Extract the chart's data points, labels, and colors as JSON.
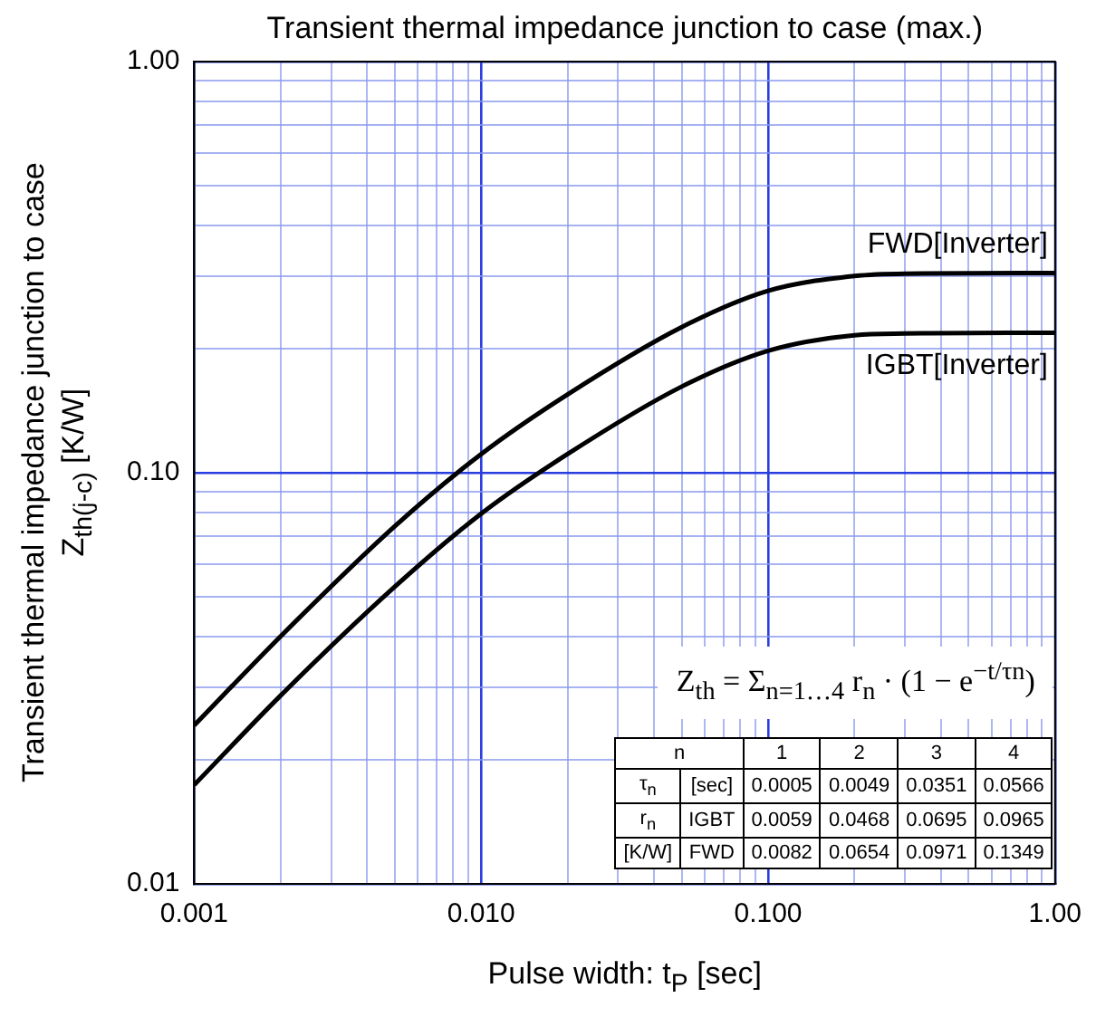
{
  "chart_data": {
    "type": "line",
    "title": "Transient thermal impedance junction to case (max.)",
    "xlabel": "Pulse width: t$_{P}$ [sec]",
    "ylabel": "Transient thermal impedance junction to case\nZ$_{th(j-c)}$  [K/W]",
    "log": "xy",
    "grid": true,
    "marker": "none",
    "line_style": "solid",
    "x": [
      0.001,
      0.002,
      0.005,
      0.01,
      0.02,
      0.05,
      0.1,
      0.2,
      0.3,
      1
    ],
    "series": [
      {
        "name": "FWD[Inverter]",
        "color": "#000000",
        "values": [
          0.0243,
          0.04,
          0.0741,
          0.111,
          0.155,
          0.226,
          0.277,
          0.301,
          0.305,
          0.306
        ]
      },
      {
        "name": "IGBT[Inverter]",
        "color": "#000000",
        "values": [
          0.0174,
          0.0287,
          0.0528,
          0.0795,
          0.111,
          0.162,
          0.198,
          0.216,
          0.218,
          0.219
        ]
      }
    ],
    "xlim": [
      0.001,
      1
    ],
    "ylim": [
      0.01,
      1
    ],
    "xticks": [
      {
        "value": 0.001,
        "label": "0.001"
      },
      {
        "value": 0.002,
        "label": null
      },
      {
        "value": 0.003,
        "label": null
      },
      {
        "value": 0.004,
        "label": null
      },
      {
        "value": 0.005,
        "label": null
      },
      {
        "value": 0.006,
        "label": null
      },
      {
        "value": 0.007,
        "label": null
      },
      {
        "value": 0.008,
        "label": null
      },
      {
        "value": 0.009,
        "label": null
      },
      {
        "value": 0.01,
        "label": "0.010"
      },
      {
        "value": 0.02,
        "label": null
      },
      {
        "value": 0.03,
        "label": null
      },
      {
        "value": 0.04,
        "label": null
      },
      {
        "value": 0.05,
        "label": null
      },
      {
        "value": 0.06,
        "label": null
      },
      {
        "value": 0.07,
        "label": null
      },
      {
        "value": 0.08,
        "label": null
      },
      {
        "value": 0.09,
        "label": null
      },
      {
        "value": 0.1,
        "label": "0.100"
      },
      {
        "value": 0.2,
        "label": null
      },
      {
        "value": 0.3,
        "label": null
      },
      {
        "value": 0.4,
        "label": null
      },
      {
        "value": 0.5,
        "label": null
      },
      {
        "value": 0.6,
        "label": null
      },
      {
        "value": 0.7,
        "label": null
      },
      {
        "value": 0.8,
        "label": null
      },
      {
        "value": 0.9,
        "label": null
      },
      {
        "value": 1,
        "label": "1.00"
      }
    ],
    "yticks": [
      {
        "value": 0.01,
        "label": "0.01"
      },
      {
        "value": 0.02,
        "label": null
      },
      {
        "value": 0.03,
        "label": null
      },
      {
        "value": 0.04,
        "label": null
      },
      {
        "value": 0.05,
        "label": null
      },
      {
        "value": 0.06,
        "label": null
      },
      {
        "value": 0.07,
        "label": null
      },
      {
        "value": 0.08,
        "label": null
      },
      {
        "value": 0.09,
        "label": null
      },
      {
        "value": 0.1,
        "label": "0.10"
      },
      {
        "value": 0.2,
        "label": null
      },
      {
        "value": 0.3,
        "label": null
      },
      {
        "value": 0.4,
        "label": null
      },
      {
        "value": 0.5,
        "label": null
      },
      {
        "value": 0.6,
        "label": null
      },
      {
        "value": 0.7,
        "label": null
      },
      {
        "value": 0.8,
        "label": null
      },
      {
        "value": 0.9,
        "label": null
      },
      {
        "value": 1,
        "label": "1.00"
      }
    ],
    "annotations": [
      "Z$_{th}$ = Σ$_{n=1…4}$ r$_{n}$ · (1 − e$^{−t/τn}$)",
      "n\t\t1\t2\t3\t4",
      "τ$_{n}$\t[sec]\t0.0005\t0.0049\t0.0351\t0.0566",
      "r$_{n}$\tIGBT\t0.0059\t0.0468\t0.0695\t0.0965",
      "[K/W]\tFWD\t0.0082\t0.0654\t0.0971\t0.1349"
    ]
  }
}
